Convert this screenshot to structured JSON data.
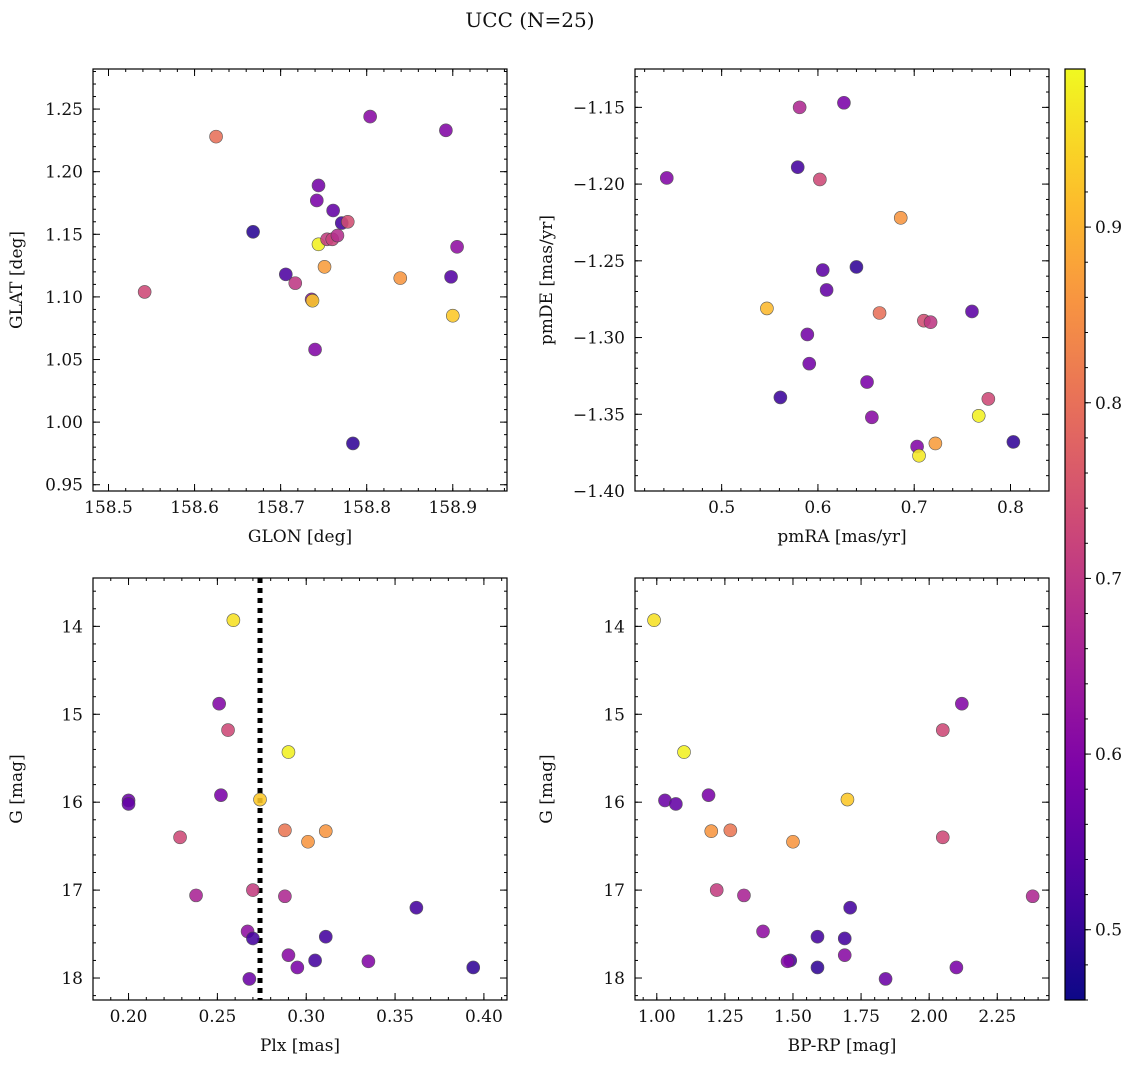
{
  "figure": {
    "title": "UCC (N=25)"
  },
  "colorbar": {
    "colormap": "plasma",
    "vmin": 0.46,
    "vmax": 0.99,
    "ticks": [
      0.5,
      0.6,
      0.7,
      0.8,
      0.9
    ],
    "tick_labels": [
      "0.5",
      "0.6",
      "0.7",
      "0.8",
      "0.9"
    ]
  },
  "chart_data": [
    {
      "type": "scatter",
      "title": "",
      "xlabel": "GLON [deg]",
      "ylabel": "GLAT [deg]",
      "xlim": [
        158.482,
        158.963
      ],
      "ylim": [
        0.945,
        1.282
      ],
      "y_inverted": false,
      "xticks": [
        158.5,
        158.6,
        158.7,
        158.8,
        158.9
      ],
      "xtick_labels": [
        "158.5",
        "158.6",
        "158.7",
        "158.8",
        "158.9"
      ],
      "xminor_step": 0.02,
      "yticks": [
        0.95,
        1.0,
        1.05,
        1.1,
        1.15,
        1.2,
        1.25
      ],
      "ytick_labels": [
        "0.95",
        "1.00",
        "1.05",
        "1.10",
        "1.15",
        "1.20",
        "1.25"
      ],
      "yminor_step": 0.01,
      "vlines": [],
      "points": [
        {
          "x": 158.542,
          "y": 1.104,
          "c": 0.73
        },
        {
          "x": 158.625,
          "y": 1.228,
          "c": 0.8
        },
        {
          "x": 158.668,
          "y": 1.152,
          "c": 0.49
        },
        {
          "x": 158.706,
          "y": 1.118,
          "c": 0.53
        },
        {
          "x": 158.717,
          "y": 1.111,
          "c": 0.7
        },
        {
          "x": 158.736,
          "y": 1.098,
          "c": 0.62
        },
        {
          "x": 158.737,
          "y": 1.097,
          "c": 0.93
        },
        {
          "x": 158.74,
          "y": 1.058,
          "c": 0.6
        },
        {
          "x": 158.742,
          "y": 1.177,
          "c": 0.59
        },
        {
          "x": 158.744,
          "y": 1.189,
          "c": 0.58
        },
        {
          "x": 158.744,
          "y": 1.142,
          "c": 0.98
        },
        {
          "x": 158.751,
          "y": 1.124,
          "c": 0.87
        },
        {
          "x": 158.754,
          "y": 1.146,
          "c": 0.71
        },
        {
          "x": 158.76,
          "y": 1.146,
          "c": 0.72
        },
        {
          "x": 158.761,
          "y": 1.169,
          "c": 0.56
        },
        {
          "x": 158.766,
          "y": 1.149,
          "c": 0.68
        },
        {
          "x": 158.771,
          "y": 1.159,
          "c": 0.52
        },
        {
          "x": 158.778,
          "y": 1.16,
          "c": 0.74
        },
        {
          "x": 158.784,
          "y": 0.983,
          "c": 0.5
        },
        {
          "x": 158.804,
          "y": 1.244,
          "c": 0.61
        },
        {
          "x": 158.839,
          "y": 1.115,
          "c": 0.86
        },
        {
          "x": 158.892,
          "y": 1.233,
          "c": 0.6
        },
        {
          "x": 158.898,
          "y": 1.116,
          "c": 0.54
        },
        {
          "x": 158.9,
          "y": 1.085,
          "c": 0.93
        },
        {
          "x": 158.905,
          "y": 1.14,
          "c": 0.62
        }
      ]
    },
    {
      "type": "scatter",
      "title": "",
      "xlabel": "pmRA [mas/yr]",
      "ylabel": "pmDE [mas/yr]",
      "xlim": [
        0.41,
        0.84
      ],
      "ylim": [
        -1.4,
        -1.125
      ],
      "y_inverted": false,
      "xticks": [
        0.5,
        0.6,
        0.7,
        0.8
      ],
      "xtick_labels": [
        "0.5",
        "0.6",
        "0.7",
        "0.8"
      ],
      "xminor_step": 0.02,
      "yticks": [
        -1.4,
        -1.35,
        -1.3,
        -1.25,
        -1.2,
        -1.15
      ],
      "ytick_labels": [
        "−1.40",
        "−1.35",
        "−1.30",
        "−1.25",
        "−1.20",
        "−1.15"
      ],
      "yminor_step": 0.01,
      "vlines": [],
      "points": [
        {
          "x": 0.443,
          "y": -1.196,
          "c": 0.6
        },
        {
          "x": 0.547,
          "y": -1.281,
          "c": 0.91
        },
        {
          "x": 0.561,
          "y": -1.339,
          "c": 0.51
        },
        {
          "x": 0.579,
          "y": -1.189,
          "c": 0.52
        },
        {
          "x": 0.581,
          "y": -1.15,
          "c": 0.67
        },
        {
          "x": 0.589,
          "y": -1.298,
          "c": 0.58
        },
        {
          "x": 0.591,
          "y": -1.317,
          "c": 0.58
        },
        {
          "x": 0.602,
          "y": -1.197,
          "c": 0.73
        },
        {
          "x": 0.605,
          "y": -1.256,
          "c": 0.55
        },
        {
          "x": 0.609,
          "y": -1.269,
          "c": 0.56
        },
        {
          "x": 0.627,
          "y": -1.147,
          "c": 0.59
        },
        {
          "x": 0.64,
          "y": -1.254,
          "c": 0.5
        },
        {
          "x": 0.651,
          "y": -1.329,
          "c": 0.59
        },
        {
          "x": 0.656,
          "y": -1.352,
          "c": 0.61
        },
        {
          "x": 0.664,
          "y": -1.284,
          "c": 0.8
        },
        {
          "x": 0.686,
          "y": -1.222,
          "c": 0.86
        },
        {
          "x": 0.703,
          "y": -1.371,
          "c": 0.6
        },
        {
          "x": 0.705,
          "y": -1.377,
          "c": 0.97
        },
        {
          "x": 0.71,
          "y": -1.289,
          "c": 0.74
        },
        {
          "x": 0.717,
          "y": -1.29,
          "c": 0.7
        },
        {
          "x": 0.722,
          "y": -1.369,
          "c": 0.87
        },
        {
          "x": 0.76,
          "y": -1.283,
          "c": 0.55
        },
        {
          "x": 0.767,
          "y": -1.351,
          "c": 0.98
        },
        {
          "x": 0.777,
          "y": -1.34,
          "c": 0.73
        },
        {
          "x": 0.803,
          "y": -1.368,
          "c": 0.5
        }
      ]
    },
    {
      "type": "scatter",
      "title": "",
      "xlabel": "Plx [mas]",
      "ylabel": "G [mag]",
      "xlim": [
        0.18,
        0.413
      ],
      "ylim": [
        13.45,
        18.25
      ],
      "y_inverted": true,
      "xticks": [
        0.2,
        0.25,
        0.3,
        0.35,
        0.4
      ],
      "xtick_labels": [
        "0.20",
        "0.25",
        "0.30",
        "0.35",
        "0.40"
      ],
      "xminor_step": 0.01,
      "yticks": [
        14,
        15,
        16,
        17,
        18
      ],
      "ytick_labels": [
        "14",
        "15",
        "16",
        "17",
        "18"
      ],
      "yminor_step": 0.2,
      "vlines": [
        0.274
      ],
      "points": [
        {
          "x": 0.259,
          "y": 13.93,
          "c": 0.96
        },
        {
          "x": 0.251,
          "y": 14.88,
          "c": 0.6
        },
        {
          "x": 0.256,
          "y": 15.18,
          "c": 0.73
        },
        {
          "x": 0.29,
          "y": 15.43,
          "c": 0.98
        },
        {
          "x": 0.252,
          "y": 15.92,
          "c": 0.59
        },
        {
          "x": 0.2,
          "y": 15.98,
          "c": 0.57
        },
        {
          "x": 0.2,
          "y": 16.02,
          "c": 0.56
        },
        {
          "x": 0.274,
          "y": 15.97,
          "c": 0.93
        },
        {
          "x": 0.288,
          "y": 16.32,
          "c": 0.81
        },
        {
          "x": 0.311,
          "y": 16.33,
          "c": 0.86
        },
        {
          "x": 0.229,
          "y": 16.4,
          "c": 0.73
        },
        {
          "x": 0.301,
          "y": 16.45,
          "c": 0.86
        },
        {
          "x": 0.27,
          "y": 17.0,
          "c": 0.71
        },
        {
          "x": 0.238,
          "y": 17.06,
          "c": 0.66
        },
        {
          "x": 0.288,
          "y": 17.07,
          "c": 0.67
        },
        {
          "x": 0.362,
          "y": 17.2,
          "c": 0.52
        },
        {
          "x": 0.267,
          "y": 17.47,
          "c": 0.62
        },
        {
          "x": 0.27,
          "y": 17.55,
          "c": 0.52
        },
        {
          "x": 0.311,
          "y": 17.53,
          "c": 0.52
        },
        {
          "x": 0.29,
          "y": 17.74,
          "c": 0.61
        },
        {
          "x": 0.305,
          "y": 17.8,
          "c": 0.52
        },
        {
          "x": 0.335,
          "y": 17.81,
          "c": 0.6
        },
        {
          "x": 0.295,
          "y": 17.88,
          "c": 0.59
        },
        {
          "x": 0.394,
          "y": 17.88,
          "c": 0.5
        },
        {
          "x": 0.268,
          "y": 18.01,
          "c": 0.57
        }
      ]
    },
    {
      "type": "scatter",
      "title": "",
      "xlabel": "BP-RP [mag]",
      "ylabel": "G [mag]",
      "xlim": [
        0.92,
        2.44
      ],
      "ylim": [
        13.45,
        18.25
      ],
      "y_inverted": true,
      "xticks": [
        1.0,
        1.25,
        1.5,
        1.75,
        2.0,
        2.25
      ],
      "xtick_labels": [
        "1.00",
        "1.25",
        "1.50",
        "1.75",
        "2.00",
        "2.25"
      ],
      "xminor_step": 0.05,
      "yticks": [
        14,
        15,
        16,
        17,
        18
      ],
      "ytick_labels": [
        "14",
        "15",
        "16",
        "17",
        "18"
      ],
      "yminor_step": 0.2,
      "vlines": [],
      "points": [
        {
          "x": 0.99,
          "y": 13.93,
          "c": 0.96
        },
        {
          "x": 2.12,
          "y": 14.88,
          "c": 0.6
        },
        {
          "x": 2.05,
          "y": 15.18,
          "c": 0.73
        },
        {
          "x": 1.1,
          "y": 15.43,
          "c": 0.98
        },
        {
          "x": 1.19,
          "y": 15.92,
          "c": 0.59
        },
        {
          "x": 1.03,
          "y": 15.98,
          "c": 0.57
        },
        {
          "x": 1.07,
          "y": 16.02,
          "c": 0.56
        },
        {
          "x": 1.7,
          "y": 15.97,
          "c": 0.93
        },
        {
          "x": 1.27,
          "y": 16.32,
          "c": 0.81
        },
        {
          "x": 1.2,
          "y": 16.33,
          "c": 0.86
        },
        {
          "x": 2.05,
          "y": 16.4,
          "c": 0.73
        },
        {
          "x": 1.5,
          "y": 16.45,
          "c": 0.86
        },
        {
          "x": 1.22,
          "y": 17.0,
          "c": 0.71
        },
        {
          "x": 1.32,
          "y": 17.06,
          "c": 0.66
        },
        {
          "x": 2.38,
          "y": 17.07,
          "c": 0.67
        },
        {
          "x": 1.71,
          "y": 17.2,
          "c": 0.52
        },
        {
          "x": 1.39,
          "y": 17.47,
          "c": 0.62
        },
        {
          "x": 1.69,
          "y": 17.55,
          "c": 0.52
        },
        {
          "x": 1.59,
          "y": 17.53,
          "c": 0.52
        },
        {
          "x": 1.69,
          "y": 17.74,
          "c": 0.61
        },
        {
          "x": 1.49,
          "y": 17.8,
          "c": 0.52
        },
        {
          "x": 1.48,
          "y": 17.81,
          "c": 0.6
        },
        {
          "x": 2.1,
          "y": 17.88,
          "c": 0.59
        },
        {
          "x": 1.59,
          "y": 17.88,
          "c": 0.5
        },
        {
          "x": 1.84,
          "y": 18.01,
          "c": 0.57
        }
      ]
    }
  ]
}
